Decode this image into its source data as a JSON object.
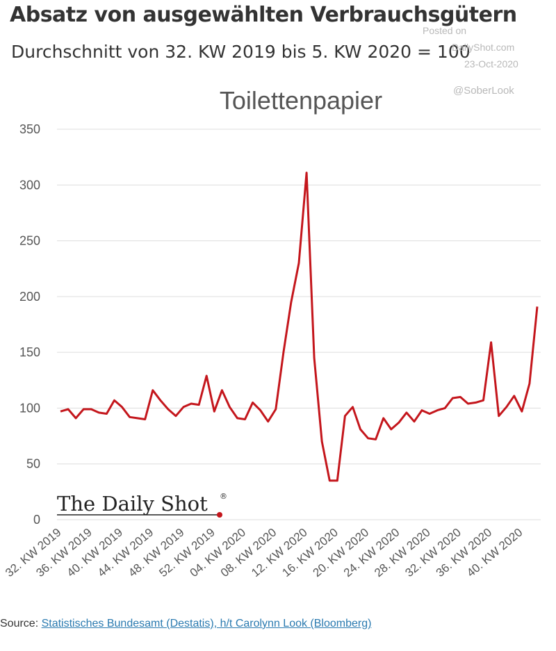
{
  "header": {
    "title": "Absatz von ausgewählten Verbrauchsgütern",
    "subtitle": "Durchschnitt von 32. KW 2019 bis 5. KW 2020 = 100"
  },
  "watermark": {
    "posted": "Posted on",
    "site": "DailyShot.com",
    "date": "23-Oct-2020",
    "handle": "@SoberLook"
  },
  "logo": {
    "text": "The Daily Shot",
    "mark": "®"
  },
  "source": {
    "label": "Source:",
    "link_text": "Statistisches Bundesamt (Destatis), h/t Carolynn Look (Bloomberg)"
  },
  "colors": {
    "line": "#c4161c",
    "grid": "#dddddd",
    "axis_text": "#555555"
  },
  "chart_data": {
    "type": "line",
    "title": "Toilettenpapier",
    "ylim": [
      0,
      350
    ],
    "y_ticks": [
      0,
      50,
      100,
      150,
      200,
      250,
      300,
      350
    ],
    "grid": "horizontal",
    "x_tick_labels": [
      "32. KW 2019",
      "36. KW 2019",
      "40. KW 2019",
      "44. KW 2019",
      "48. KW 2019",
      "52. KW 2019",
      "04. KW 2020",
      "08. KW 2020",
      "12. KW 2020",
      "16. KW 2020",
      "20. KW 2020",
      "24. KW 2020",
      "28. KW 2020",
      "32. KW 2020",
      "36. KW 2020",
      "40. KW 2020"
    ],
    "x_tick_every": 4,
    "series": [
      {
        "values": [
          97,
          99,
          91,
          99,
          99,
          96,
          95,
          107,
          101,
          92,
          91,
          90,
          116,
          107,
          99,
          93,
          101,
          104,
          103,
          129,
          97,
          116,
          101,
          91,
          90,
          105,
          98,
          88,
          99,
          150,
          195,
          230,
          311,
          145,
          70,
          35,
          35,
          93,
          101,
          81,
          73,
          72,
          91,
          81,
          87,
          96,
          88,
          98,
          95,
          98,
          100,
          109,
          110,
          104,
          105,
          107,
          159,
          93,
          101,
          111,
          97,
          122,
          191
        ]
      }
    ]
  }
}
